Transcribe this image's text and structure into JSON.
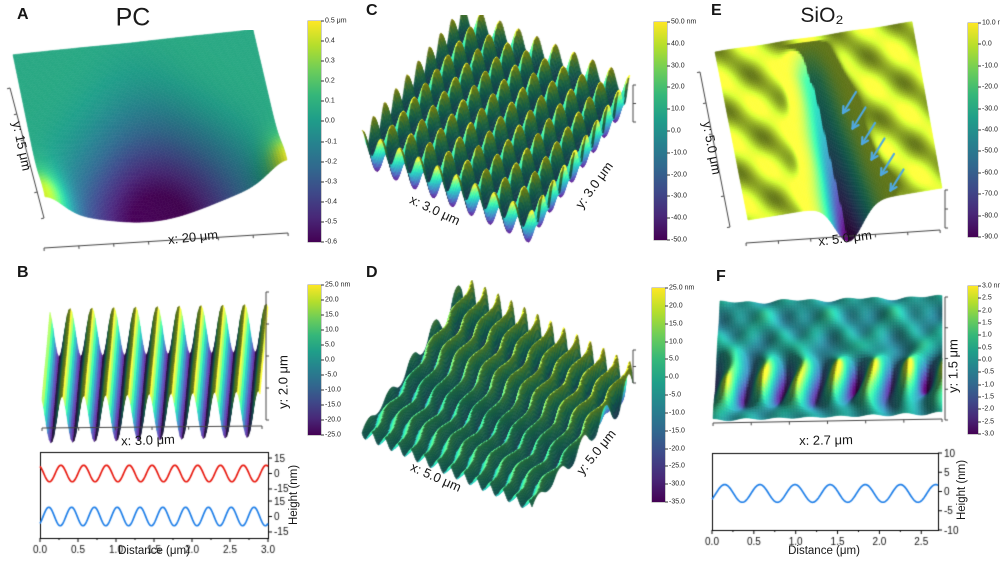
{
  "panels": {
    "A": {
      "letter": "A",
      "title": "PC",
      "x_label": "x: 20 μm",
      "y_label": "y: 15 μm",
      "colorbar_ticks": [
        "0.5 μm",
        "0.4",
        "0.3",
        "0.2",
        "0.1",
        "0.0",
        "-0.1",
        "-0.2",
        "-0.3",
        "-0.4",
        "-0.5",
        "-0.6"
      ]
    },
    "B": {
      "letter": "B",
      "x_label": "x: 3.0 μm",
      "y_label": "y: 2.0 μm",
      "colorbar_ticks": [
        "25.0 nm",
        "20.0",
        "15.0",
        "10.0",
        "5.0",
        "0.0",
        "-5.0",
        "-10.0",
        "-15.0",
        "-20.0",
        "-25.0"
      ]
    },
    "C": {
      "letter": "C",
      "x_label": "x: 3.0 μm",
      "y_label": "y: 3.0 μm",
      "colorbar_ticks": [
        "50.0 nm",
        "40.0",
        "30.0",
        "20.0",
        "10.0",
        "0.0",
        "-10.0",
        "-20.0",
        "-30.0",
        "-40.0",
        "-50.0"
      ]
    },
    "D": {
      "letter": "D",
      "x_label": "x: 5.0 μm",
      "y_label": "y: 5.0 μm",
      "colorbar_ticks": [
        "25.0 nm",
        "20.0",
        "15.0",
        "10.0",
        "5.0",
        "0.0",
        "-5.0",
        "-10.0",
        "-15.0",
        "-20.0",
        "-25.0",
        "-30.0",
        "-35.0"
      ]
    },
    "E": {
      "letter": "E",
      "title": "SiO₂",
      "x_label": "x: 5.0 μm",
      "y_label": "y: 5.0 μm",
      "colorbar_ticks": [
        "10.0 nm",
        "0.0",
        "-10.0",
        "-20.0",
        "-30.0",
        "-40.0",
        "-50.0",
        "-60.0",
        "-70.0",
        "-80.0",
        "-90.0"
      ]
    },
    "F": {
      "letter": "F",
      "x_label": "x: 2.7 μm",
      "y_label": "y: 1.5 μm",
      "colorbar_ticks": [
        "3.0 nm",
        "2.5",
        "2.0",
        "1.5",
        "1.0",
        "0.5",
        "0.0",
        "-0.5",
        "-1.0",
        "-1.5",
        "-2.0",
        "-2.5",
        "-3.0"
      ]
    }
  },
  "profiles": {
    "B": {
      "x_label": "Distance (μm)",
      "y_label": "Height (nm)",
      "x_ticks": [
        "0.0",
        "0.5",
        "1.0",
        "1.5",
        "2.0",
        "2.5",
        "3.0"
      ],
      "y_ticks": [
        "15",
        "0",
        "-15",
        "15",
        "0",
        "-15"
      ]
    },
    "F": {
      "x_label": "Distance (μm)",
      "y_label": "Height (nm)",
      "x_ticks": [
        "0.0",
        "0.5",
        "1.0",
        "1.5",
        "2.0",
        "2.5"
      ],
      "y_ticks": [
        "10",
        "5",
        "0",
        "-5",
        "-10"
      ]
    }
  },
  "colors": {
    "profile_red": "#e8190f",
    "profile_blue": "#1f7fe8",
    "arrow_blue": "#4fa8e0",
    "viridis_low": "#440154",
    "viridis_high": "#fde725"
  },
  "chart_data": [
    {
      "id": "A",
      "type": "3d-surface",
      "sample": "PC",
      "x_extent_um": 20,
      "y_extent_um": 15,
      "z_unit": "μm",
      "z_min": -0.6,
      "z_max": 0.5,
      "pattern": "central-pit",
      "base_z": 0.06,
      "pit_depth": 0.72,
      "corner_height": 0.48,
      "description": "smooth film with deep central depression, raised bright front corners"
    },
    {
      "id": "B",
      "type": "3d-surface",
      "x_extent_um": 3.0,
      "y_extent_um": 2.0,
      "z_unit": "nm",
      "z_min": -25,
      "z_max": 25,
      "pattern": "ripples",
      "periods": 10,
      "amplitude": 21,
      "phase": 2.1,
      "description": "parallel laser-induced ripples, period ~0.3 μm"
    },
    {
      "id": "C",
      "type": "3d-surface",
      "x_extent_um": 3.0,
      "y_extent_um": 3.0,
      "z_unit": "nm",
      "z_min": -50,
      "z_max": 50,
      "pattern": "bumps",
      "periods": 9,
      "amplitude": 24,
      "description": "square lattice of dot bumps, 9 per side"
    },
    {
      "id": "D",
      "type": "3d-surface",
      "x_extent_um": 5.0,
      "y_extent_um": 5.0,
      "z_unit": "nm",
      "z_min": -35,
      "z_max": 25,
      "pattern": "wavy-ridges",
      "periods": 13,
      "amp_base": 6,
      "amp_gain": 15,
      "wobble": 1.0,
      "wobble_periods": 4.5,
      "description": "wavy parallel ridges, taller toward right side"
    },
    {
      "id": "E",
      "type": "3d-surface",
      "sample": "SiO₂",
      "x_extent_um": 5.0,
      "y_extent_um": 5.0,
      "z_unit": "nm",
      "z_min": -90,
      "z_max": 10,
      "pattern": "groove",
      "groove_depth": 95,
      "arrow_count": 6,
      "description": "flat oxide surface with deep diagonal scratch groove marked by 6 blue arrows"
    },
    {
      "id": "F",
      "type": "3d-surface",
      "x_extent_um": 2.7,
      "y_extent_um": 1.5,
      "z_unit": "nm",
      "z_min": -3,
      "z_max": 3,
      "pattern": "ripple-band",
      "periods": 6.3,
      "amplitude": 2.6,
      "band_center": 0.3,
      "band_width": 0.17,
      "description": "band of tilted shallow ripples on smooth surface"
    },
    {
      "id": "B-profile",
      "type": "line",
      "x_range_um": [
        0,
        3.0
      ],
      "xlabel": "Distance (μm)",
      "ylabel": "Height (nm)",
      "y_tick_value_nm": 15,
      "series": [
        {
          "name": "top-profile",
          "color_key": "profile_red",
          "amplitude_nm": 8,
          "period_um": 0.3,
          "phase": 2.1,
          "offset_nm": 0
        },
        {
          "name": "bottom-profile",
          "color_key": "profile_blue",
          "amplitude_nm": 9,
          "period_um": 0.3,
          "phase": -0.85,
          "offset_nm": 0
        }
      ]
    },
    {
      "id": "F-profile",
      "type": "line",
      "x_range_um": [
        0,
        2.7
      ],
      "xlabel": "Distance (μm)",
      "ylabel": "Height (nm)",
      "y_range_nm": [
        -10,
        10
      ],
      "series": [
        {
          "name": "profile",
          "color_key": "profile_blue",
          "amplitude_nm": 2.3,
          "period_um": 0.42,
          "phase": -0.7,
          "offset_nm": -0.5
        }
      ]
    }
  ]
}
